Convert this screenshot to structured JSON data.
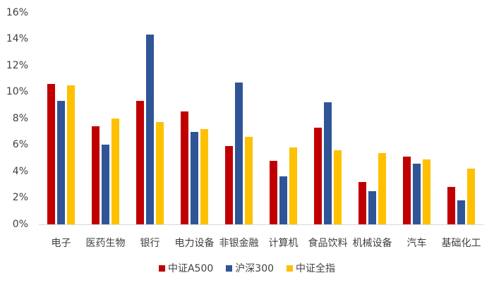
{
  "chart_data": {
    "type": "bar",
    "title": "",
    "xlabel": "",
    "ylabel": "",
    "ylim": [
      0,
      16
    ],
    "yticks": [
      "0%",
      "2%",
      "4%",
      "6%",
      "8%",
      "10%",
      "12%",
      "14%",
      "16%"
    ],
    "grid": false,
    "legend_position": "bottom",
    "categories": [
      "电子",
      "医药生物",
      "银行",
      "电力设备",
      "非银金融",
      "计算机",
      "食品饮料",
      "机械设备",
      "汽车",
      "基础化工"
    ],
    "series": [
      {
        "name": "中证A500",
        "color": "#C00000",
        "values": [
          10.6,
          7.4,
          9.3,
          8.5,
          5.9,
          4.8,
          7.3,
          3.2,
          5.1,
          2.8
        ]
      },
      {
        "name": "沪深300",
        "color": "#2F5597",
        "values": [
          9.3,
          6.0,
          14.3,
          7.0,
          10.7,
          3.6,
          9.2,
          2.5,
          4.6,
          1.8
        ]
      },
      {
        "name": "中证全指",
        "color": "#FFC000",
        "values": [
          10.5,
          8.0,
          7.7,
          7.2,
          6.6,
          5.8,
          5.6,
          5.4,
          4.9,
          4.2
        ]
      }
    ]
  }
}
